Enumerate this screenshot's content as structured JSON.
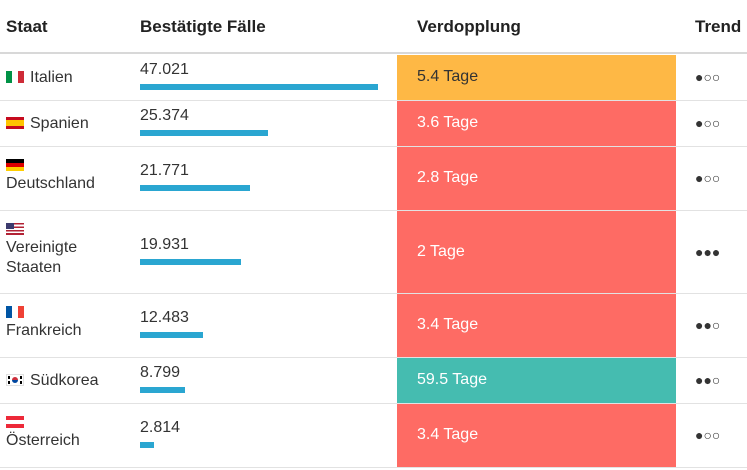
{
  "columns": {
    "staat": "Staat",
    "cases": "Bestätigte Fälle",
    "doubling": "Verdopplung",
    "trend": "Trend"
  },
  "colors": {
    "bar": "#2aa6d1",
    "doubling_orange": "#feb845",
    "doubling_red": "#fe6b64",
    "doubling_teal": "#45bcb0"
  },
  "chart_data": {
    "type": "table",
    "columns": [
      "Staat",
      "Bestätigte Fälle",
      "Verdopplung",
      "Trend"
    ],
    "bar_max": 47021,
    "rows": [
      {
        "country": "Italien",
        "flag": "italy-flag",
        "cases_label": "47.021",
        "cases": 47021,
        "doubling": "5.4 Tage",
        "doubling_color": "#feb845",
        "trend": "●○○"
      },
      {
        "country": "Spanien",
        "flag": "spain-flag",
        "cases_label": "25.374",
        "cases": 25374,
        "doubling": "3.6 Tage",
        "doubling_color": "#fe6b64",
        "trend": "●○○"
      },
      {
        "country": "Deutschland",
        "flag": "germany-flag",
        "cases_label": "21.771",
        "cases": 21771,
        "doubling": "2.8 Tage",
        "doubling_color": "#fe6b64",
        "trend": "●○○"
      },
      {
        "country": "Vereinigte Staaten",
        "flag": "usa-flag",
        "cases_label": "19.931",
        "cases": 19931,
        "doubling": "2 Tage",
        "doubling_color": "#fe6b64",
        "trend": "●●●"
      },
      {
        "country": "Frankreich",
        "flag": "france-flag",
        "cases_label": "12.483",
        "cases": 12483,
        "doubling": "3.4 Tage",
        "doubling_color": "#fe6b64",
        "trend": "●●○"
      },
      {
        "country": "Südkorea",
        "flag": "south-korea-flag",
        "cases_label": "8.799",
        "cases": 8799,
        "doubling": "59.5 Tage",
        "doubling_color": "#45bcb0",
        "trend": "●●○"
      },
      {
        "country": "Österreich",
        "flag": "austria-flag",
        "cases_label": "2.814",
        "cases": 2814,
        "doubling": "3.4 Tage",
        "doubling_color": "#fe6b64",
        "trend": "●○○"
      }
    ]
  }
}
